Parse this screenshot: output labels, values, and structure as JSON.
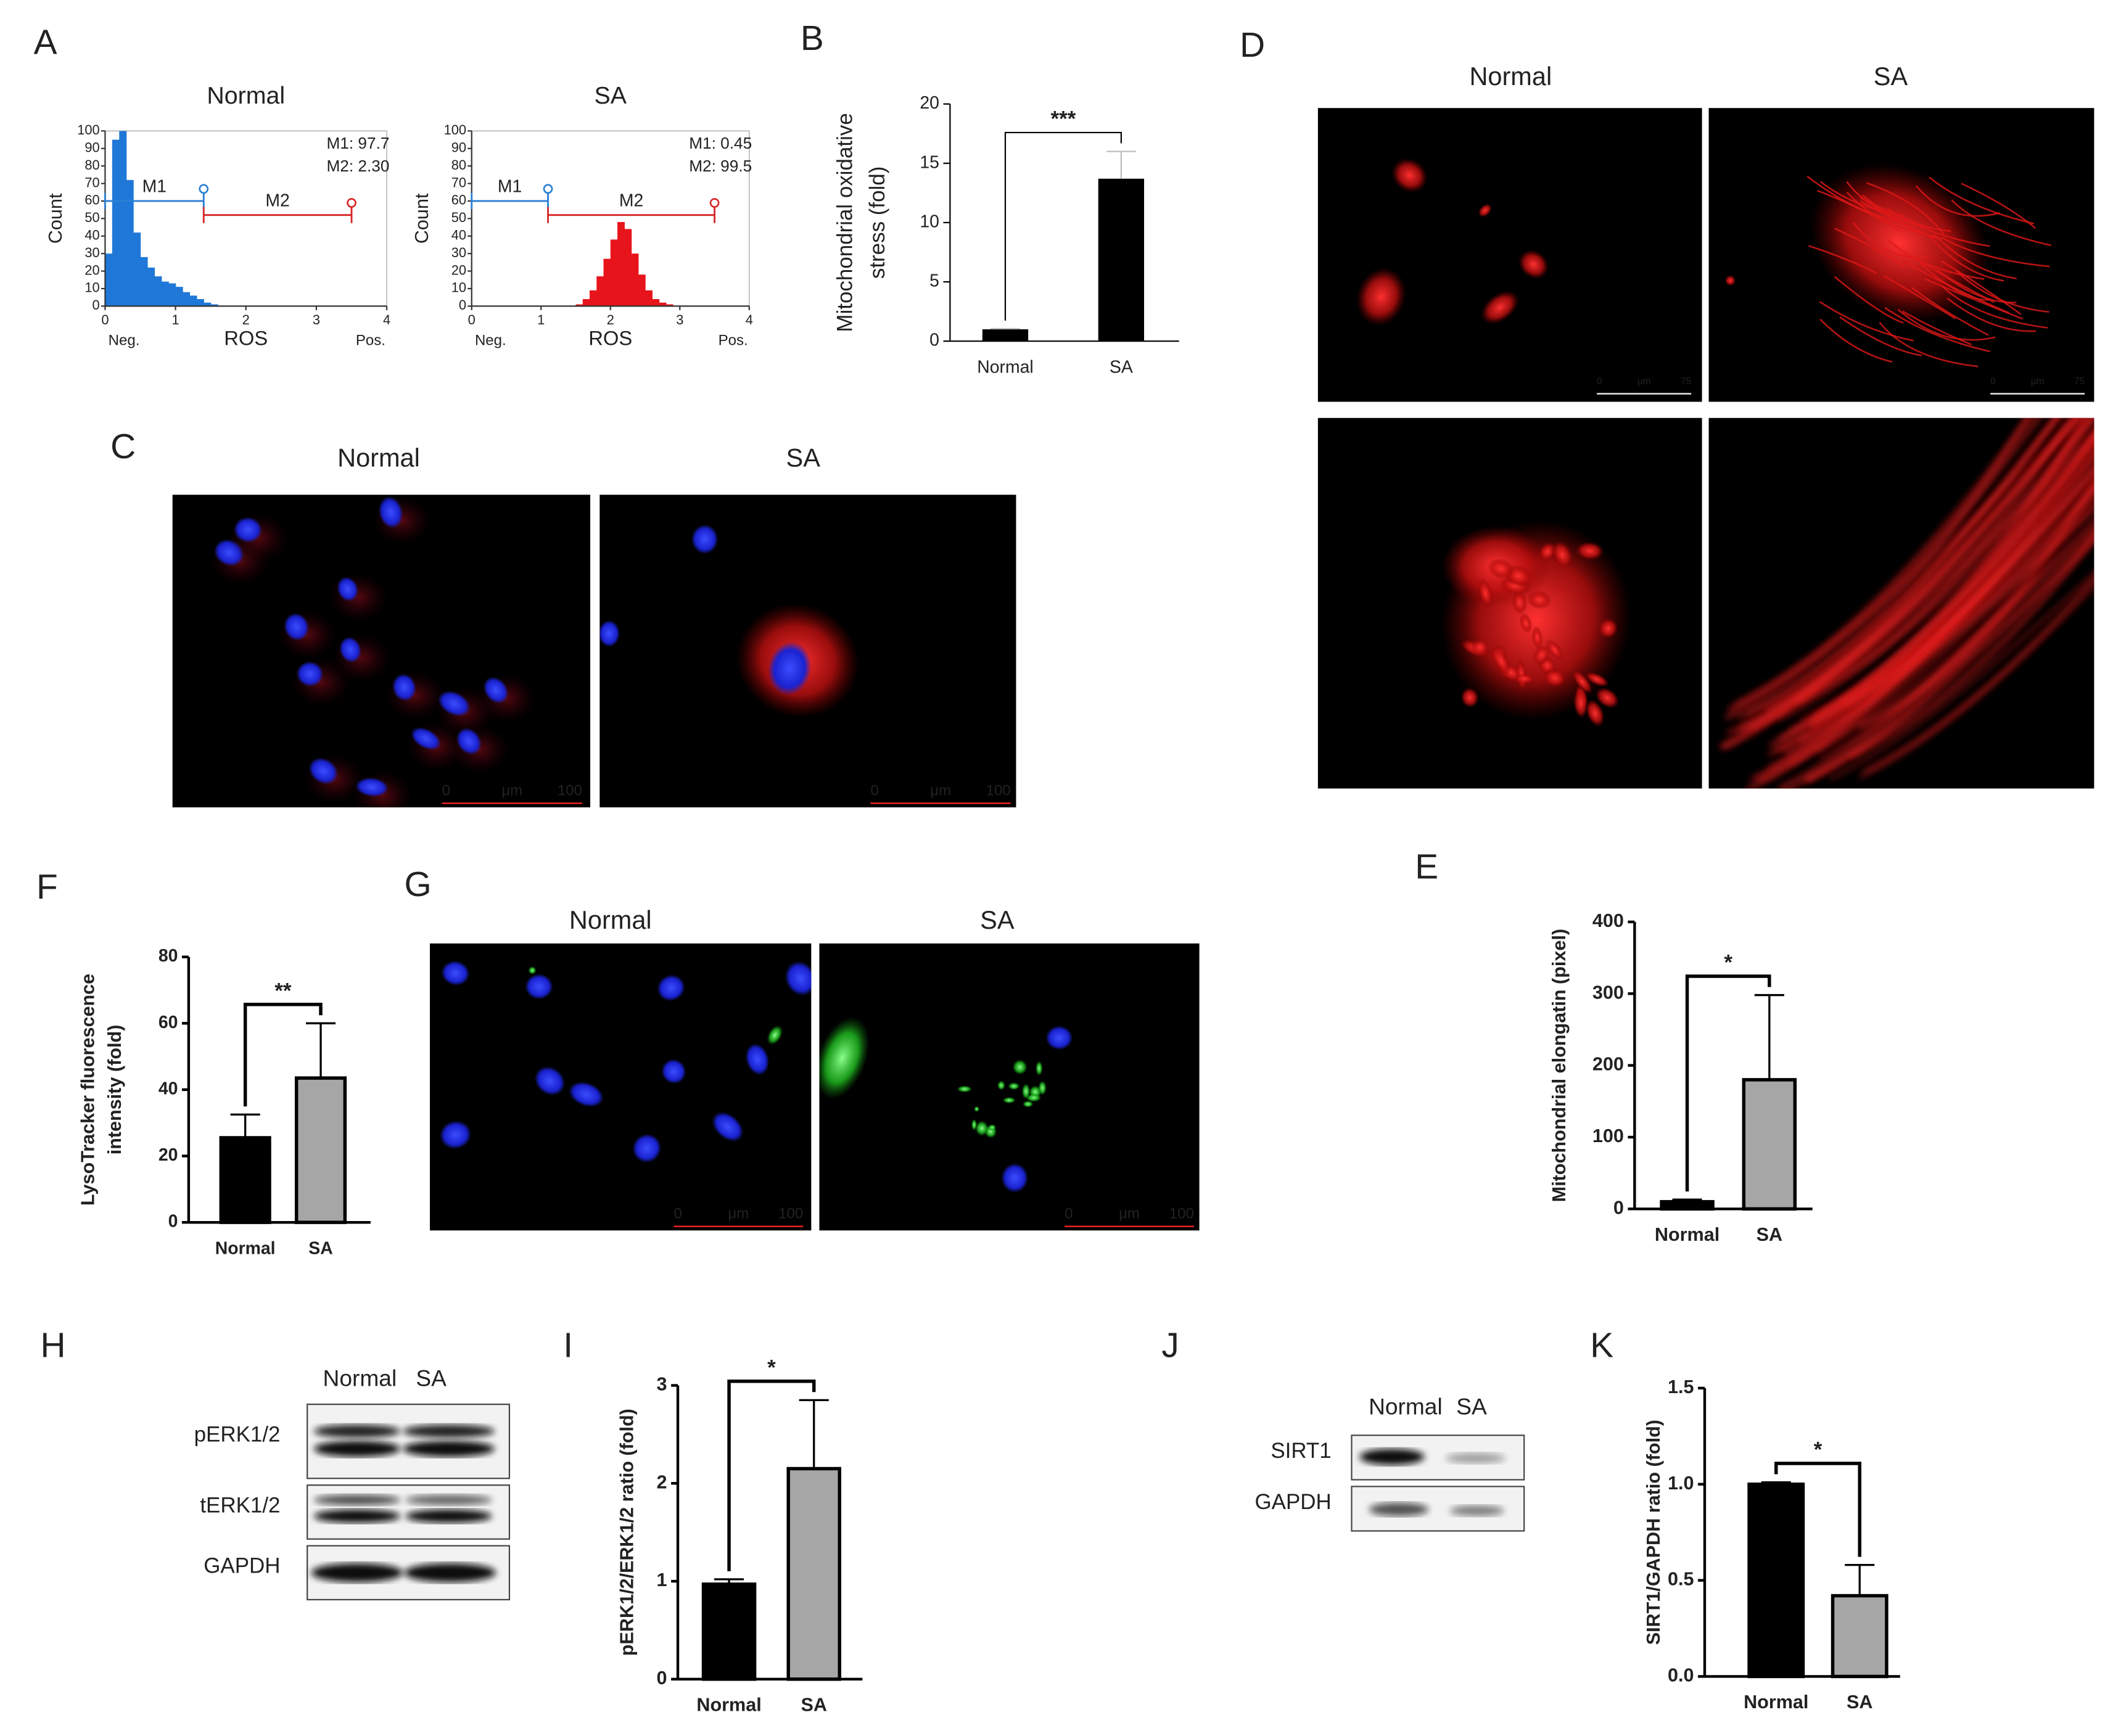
{
  "labels": [
    "A",
    "B",
    "C",
    "D",
    "E",
    "F",
    "G",
    "H",
    "I",
    "J",
    "K"
  ],
  "chart_data": [
    {
      "type": "histogram",
      "title": "Normal",
      "ylabel": "Count",
      "xlabel": "ROS",
      "x_end_labels": [
        "Neg.",
        "Pos."
      ],
      "bins": [
        0,
        0.1,
        0.2,
        0.3,
        0.4,
        0.5,
        0.6,
        0.7,
        0.8,
        0.9,
        1.0,
        1.1,
        1.2,
        1.3,
        1.4,
        1.5,
        1.6,
        1.7,
        1.8,
        1.9,
        2.0,
        2.1,
        2.2,
        2.3,
        2.4,
        2.5,
        2.6,
        2.7,
        2.8,
        2.9,
        3.0,
        3.1,
        3.2,
        3.3,
        3.4,
        3.5,
        3.6,
        3.7,
        3.8,
        3.9,
        4.0
      ],
      "counts": [
        30,
        95,
        100,
        72,
        42,
        28,
        22,
        17,
        14,
        13,
        11,
        8,
        6,
        4,
        2,
        1,
        0,
        0,
        0,
        0,
        0,
        0,
        0,
        0,
        0,
        0,
        0,
        0,
        0,
        0,
        0,
        0,
        0,
        0,
        0,
        0,
        0,
        0,
        0,
        0
      ],
      "color": "#1f78d8",
      "xlim": [
        0,
        4
      ],
      "ylim": [
        0,
        100
      ],
      "xticks": [
        0,
        1,
        2,
        3,
        4
      ],
      "yticks": [
        0,
        10,
        20,
        30,
        40,
        50,
        60,
        70,
        80,
        90,
        100
      ],
      "gates": [
        {
          "label": "M1",
          "range": [
            0,
            1.4
          ],
          "level": 60,
          "color": "#2a7fd4"
        },
        {
          "label": "M2",
          "range": [
            1.4,
            3.5
          ],
          "level": 52,
          "color": "#d62728"
        }
      ],
      "stats": [
        {
          "label": "M1: 97.7",
          "color": "#2a7fd4"
        },
        {
          "label": "M2: 2.30",
          "color": "#d62728"
        }
      ]
    },
    {
      "type": "histogram",
      "title": "SA",
      "ylabel": "Count",
      "xlabel": "ROS",
      "x_end_labels": [
        "Neg.",
        "Pos."
      ],
      "bins": [
        0,
        0.1,
        0.2,
        0.3,
        0.4,
        0.5,
        0.6,
        0.7,
        0.8,
        0.9,
        1.0,
        1.1,
        1.2,
        1.3,
        1.4,
        1.5,
        1.6,
        1.7,
        1.8,
        1.9,
        2.0,
        2.1,
        2.2,
        2.3,
        2.4,
        2.5,
        2.6,
        2.7,
        2.8,
        2.9,
        3.0,
        3.1,
        3.2,
        3.3,
        3.4,
        3.5,
        3.6,
        3.7,
        3.8,
        3.9,
        4.0
      ],
      "counts": [
        0,
        0,
        0,
        0,
        0,
        0,
        0,
        0,
        0,
        0,
        0,
        0,
        0,
        0,
        0,
        1,
        4,
        9,
        17,
        27,
        38,
        48,
        44,
        30,
        18,
        9,
        4,
        2,
        1,
        0,
        0,
        0,
        0,
        0,
        0,
        0,
        0,
        0,
        0,
        0
      ],
      "color": "#e8141c",
      "xlim": [
        0,
        4
      ],
      "ylim": [
        0,
        100
      ],
      "xticks": [
        0,
        1,
        2,
        3,
        4
      ],
      "yticks": [
        0,
        10,
        20,
        30,
        40,
        50,
        60,
        70,
        80,
        90,
        100
      ],
      "gates": [
        {
          "label": "M1",
          "range": [
            0,
            1.1
          ],
          "level": 60,
          "color": "#2a7fd4"
        },
        {
          "label": "M2",
          "range": [
            1.1,
            3.5
          ],
          "level": 52,
          "color": "#d62728"
        }
      ],
      "stats": [
        {
          "label": "M1: 0.45",
          "color": "#2a7fd4"
        },
        {
          "label": "M2: 99.5",
          "color": "#d62728"
        }
      ]
    },
    {
      "type": "bar",
      "ylabel": [
        "Mitochondrial oxidative",
        "stress (fold)"
      ],
      "categories": [
        "Normal",
        "SA"
      ],
      "values": [
        1.0,
        13.7
      ],
      "errors": [
        0.05,
        2.3
      ],
      "colors": [
        "#000000",
        "#000000"
      ],
      "ylim": [
        0,
        20
      ],
      "yticks": [
        0,
        5,
        10,
        15,
        20
      ],
      "significance": "***",
      "bold": false
    },
    {
      "type": "bar",
      "ylabel": [
        "Mitochondrial elongatin (pixel)"
      ],
      "categories": [
        "Normal",
        "SA"
      ],
      "values": [
        10,
        180
      ],
      "errors": [
        3,
        118
      ],
      "colors": [
        "#000000",
        "#a6a6a6"
      ],
      "ylim": [
        0,
        400
      ],
      "yticks": [
        0,
        100,
        200,
        300,
        400
      ],
      "significance": "*",
      "bold": true
    },
    {
      "type": "bar",
      "ylabel": [
        "LysoTracker fluorescence",
        "intensity (fold)"
      ],
      "categories": [
        "Normal",
        "SA"
      ],
      "values": [
        25.5,
        43.5
      ],
      "errors": [
        7,
        16.5
      ],
      "colors": [
        "#000000",
        "#a6a6a6"
      ],
      "ylim": [
        0,
        80
      ],
      "yticks": [
        0,
        20,
        40,
        60,
        80
      ],
      "significance": "**",
      "bold": true
    },
    {
      "type": "bar",
      "ylabel": [
        "pERK1/2/ERK1/2 ratio (fold)"
      ],
      "categories": [
        "Normal",
        "SA"
      ],
      "values": [
        0.97,
        2.15
      ],
      "errors": [
        0.05,
        0.7
      ],
      "colors": [
        "#000000",
        "#a6a6a6"
      ],
      "ylim": [
        0,
        3
      ],
      "yticks": [
        0,
        1,
        2,
        3
      ],
      "significance": "*",
      "bold": true
    },
    {
      "type": "bar",
      "ylabel": [
        "SIRT1/GAPDH ratio (fold)"
      ],
      "categories": [
        "Normal",
        "SA"
      ],
      "values": [
        1.0,
        0.42
      ],
      "errors": [
        0.01,
        0.16
      ],
      "colors": [
        "#000000",
        "#a6a6a6"
      ],
      "ylim": [
        0,
        1.5
      ],
      "yticks": [
        {
          "value": 0,
          "label": "0.0"
        },
        0.5,
        {
          "value": 1,
          "label": "1.0"
        },
        1.5
      ],
      "significance": "*",
      "bold": true
    }
  ],
  "images": [
    {
      "titles": [
        "Normal",
        "SA"
      ],
      "scale_bar": [
        "0",
        "μm",
        "100"
      ]
    },
    {
      "titles": [
        "Normal",
        "SA"
      ],
      "scale_bar": [
        "0",
        "μm",
        "75"
      ]
    },
    {
      "titles": [
        "Normal",
        "SA"
      ],
      "scale_bar": [
        "0",
        "μm",
        "100"
      ]
    }
  ],
  "blots": [
    {
      "lanes": [
        "Normal",
        "SA"
      ],
      "rows": [
        "pERK1/2",
        "tERK1/2",
        "GAPDH"
      ]
    },
    {
      "lanes": [
        "Normal",
        "SA"
      ],
      "rows": [
        "SIRT1",
        "GAPDH"
      ]
    }
  ]
}
